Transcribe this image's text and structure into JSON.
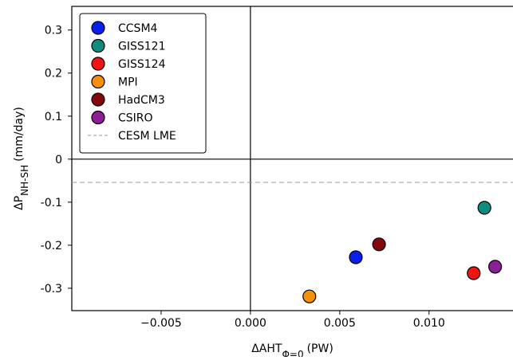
{
  "chart_data": {
    "type": "scatter",
    "x_label": {
      "main": "ΔAHT",
      "sub": "Φ=0",
      "unit": "(PW)"
    },
    "y_label": {
      "main": "ΔP",
      "sub": "NH-SH",
      "unit": "(mm/day)"
    },
    "xlim": [
      -0.01,
      0.0147
    ],
    "ylim": [
      -0.352,
      0.355
    ],
    "xticks": [
      {
        "value": -0.005,
        "label": "−0.005"
      },
      {
        "value": 0,
        "label": "0.000"
      },
      {
        "value": 0.005,
        "label": "0.005"
      },
      {
        "value": 0.01,
        "label": "0.010"
      }
    ],
    "yticks": [
      0.3,
      0.2,
      0.1,
      0,
      -0.1,
      -0.2,
      -0.3
    ],
    "zero_lines": true,
    "legend": "upper left",
    "series": [
      {
        "name": "CCSM4",
        "color": "#0a1ef0",
        "x": [
          0.0059
        ],
        "values": [
          -0.228
        ]
      },
      {
        "name": "GISS121",
        "color": "#0f8c82",
        "x": [
          0.0131
        ],
        "values": [
          -0.113
        ]
      },
      {
        "name": "GISS124",
        "color": "#f01414",
        "x": [
          0.0125
        ],
        "values": [
          -0.265
        ]
      },
      {
        "name": "MPI",
        "color": "#f5900f",
        "x": [
          0.0033
        ],
        "values": [
          -0.319
        ]
      },
      {
        "name": "HadCM3",
        "color": "#820a0a",
        "x": [
          0.0072
        ],
        "values": [
          -0.198
        ]
      },
      {
        "name": "CSIRO",
        "color": "#8c1e96",
        "x": [
          0.0137
        ],
        "values": [
          -0.25
        ]
      }
    ],
    "reference_line": {
      "name": "CESM LME",
      "value": -0.054,
      "color": "#999999"
    }
  }
}
